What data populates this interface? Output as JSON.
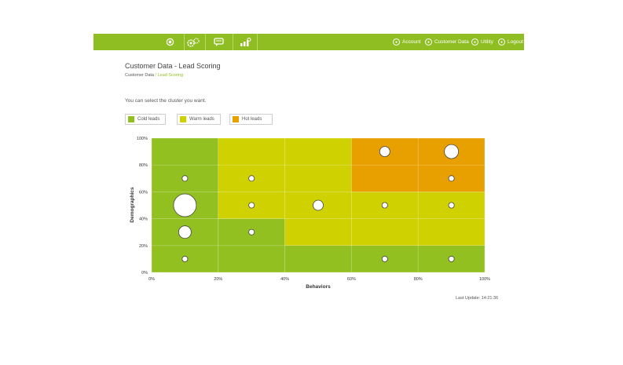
{
  "topbar": {
    "icons": [
      "power-icon",
      "gears-icon",
      "chat-icon",
      "analytics-icon"
    ],
    "nav": [
      {
        "label": "Account",
        "icon": "user-circle-icon"
      },
      {
        "label": "Customer Data",
        "icon": "database-circle-icon"
      },
      {
        "label": "Utility",
        "icon": "tools-circle-icon"
      },
      {
        "label": "Logout",
        "icon": "logout-circle-icon"
      }
    ]
  },
  "page": {
    "title": "Customer Data - Lead Scoring",
    "breadcrumb_root": "Customer Data",
    "breadcrumb_sep": " / ",
    "breadcrumb_current": "Lead Scoring",
    "hint": "You can select the cluster you want.",
    "last_update": "Last Update: 14:21:36"
  },
  "legend": [
    {
      "label": "Cold leads",
      "color": "#92c020"
    },
    {
      "label": "Warm leads",
      "color": "#cfd200"
    },
    {
      "label": "Hot leads",
      "color": "#e8a000"
    }
  ],
  "chart_data": {
    "type": "scatter",
    "xlabel": "Behaviors",
    "ylabel": "Demographics",
    "xlim": [
      0,
      100
    ],
    "ylim": [
      0,
      100
    ],
    "x_ticks": [
      "0%",
      "20%",
      "40%",
      "60%",
      "80%",
      "100%"
    ],
    "y_ticks": [
      "0%",
      "20%",
      "40%",
      "60%",
      "80%",
      "100%"
    ],
    "background_zones": [
      {
        "x": [
          0,
          20
        ],
        "y": [
          0,
          100
        ],
        "zone": "cold"
      },
      {
        "x": [
          20,
          40
        ],
        "y": [
          0,
          40
        ],
        "zone": "cold"
      },
      {
        "x": [
          40,
          100
        ],
        "y": [
          0,
          20
        ],
        "zone": "cold"
      },
      {
        "x": [
          20,
          40
        ],
        "y": [
          40,
          100
        ],
        "zone": "warm"
      },
      {
        "x": [
          40,
          60
        ],
        "y": [
          20,
          100
        ],
        "zone": "warm"
      },
      {
        "x": [
          60,
          100
        ],
        "y": [
          20,
          60
        ],
        "zone": "warm"
      },
      {
        "x": [
          60,
          100
        ],
        "y": [
          60,
          100
        ],
        "zone": "hot"
      }
    ],
    "points": [
      {
        "x": 10,
        "y": 10,
        "size": 1
      },
      {
        "x": 10,
        "y": 30,
        "size": 3
      },
      {
        "x": 10,
        "y": 50,
        "size": 6
      },
      {
        "x": 10,
        "y": 70,
        "size": 1
      },
      {
        "x": 30,
        "y": 30,
        "size": 1
      },
      {
        "x": 30,
        "y": 50,
        "size": 1
      },
      {
        "x": 30,
        "y": 70,
        "size": 1
      },
      {
        "x": 50,
        "y": 50,
        "size": 2
      },
      {
        "x": 70,
        "y": 10,
        "size": 1
      },
      {
        "x": 70,
        "y": 50,
        "size": 1
      },
      {
        "x": 70,
        "y": 90,
        "size": 2
      },
      {
        "x": 90,
        "y": 10,
        "size": 1
      },
      {
        "x": 90,
        "y": 50,
        "size": 1
      },
      {
        "x": 90,
        "y": 70,
        "size": 1
      },
      {
        "x": 90,
        "y": 90,
        "size": 4
      }
    ]
  }
}
